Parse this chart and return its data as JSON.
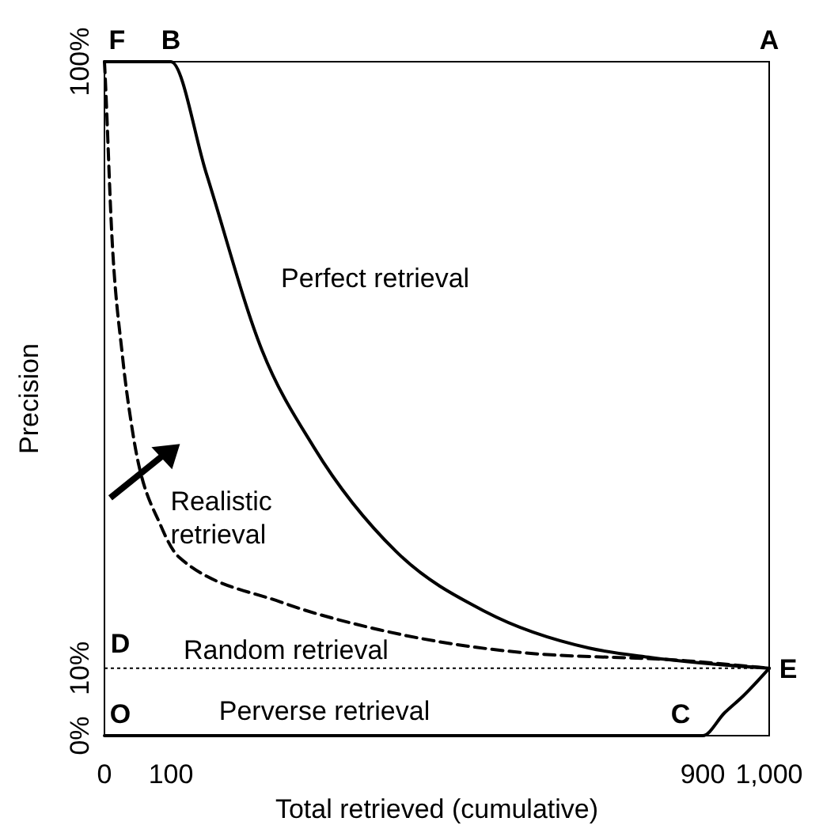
{
  "chart_data": {
    "type": "line",
    "xlabel": "Total retrieved (cumulative)",
    "ylabel": "Precision",
    "xlim": [
      0,
      1000
    ],
    "ylim": [
      0,
      100
    ],
    "xticks": [
      0,
      100,
      900,
      {
        "value": 1000,
        "label": "1,000"
      }
    ],
    "yticks": [
      {
        "value": 0,
        "label": "0%"
      },
      {
        "value": 10,
        "label": "10%"
      },
      {
        "value": 100,
        "label": "100%"
      }
    ],
    "grid": false,
    "series": [
      {
        "name": "Perfect retrieval",
        "color": "#000000",
        "line_style": "solid",
        "x": [
          0,
          100,
          153,
          237,
          315,
          439,
          573,
          729,
          822,
          1000
        ],
        "values": [
          100,
          100,
          83.5,
          57.2,
          42.8,
          27.3,
          18.4,
          13,
          11.6,
          10
        ]
      },
      {
        "name": "Realistic retrieval",
        "color": "#000000",
        "line_style": "dashed",
        "x": [
          0,
          1,
          11,
          27,
          43,
          85,
          112,
          266,
          414,
          620,
          877,
          1000
        ],
        "values": [
          100,
          98,
          74.5,
          56.4,
          44.7,
          31.1,
          26.5,
          19.8,
          15.7,
          12.4,
          11.1,
          10
        ]
      },
      {
        "name": "Perverse retrieval",
        "color": "#000000",
        "line_style": "solid",
        "x": [
          0,
          900,
          933,
          961,
          1000
        ],
        "values": [
          0,
          0,
          3.4,
          5.9,
          10
        ]
      }
    ],
    "ref_lines": [
      {
        "axis": "y",
        "value": 10,
        "label": "Random retrieval",
        "color": "#000000",
        "line_style": "dotted"
      }
    ],
    "annotations": [
      "F",
      "B",
      "A",
      "D",
      "E",
      "O",
      "C"
    ]
  }
}
